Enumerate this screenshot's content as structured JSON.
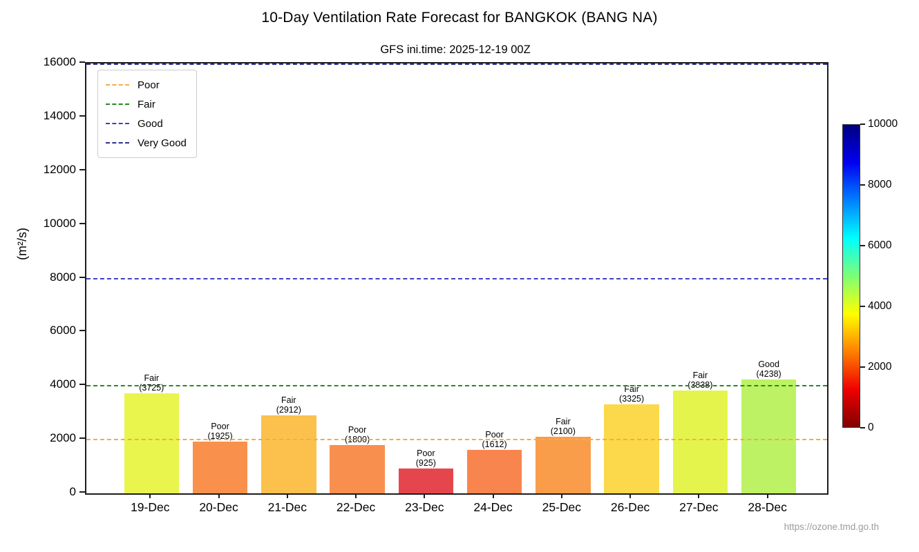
{
  "page": {
    "source_url": "https://ozone.tmd.go.th"
  },
  "chart_data": {
    "type": "bar",
    "title": "10-Day Ventilation Rate Forecast for BANGKOK (BANG NA)",
    "subtitle": "GFS ini.time: 2025-12-19 00Z",
    "xlabel": "",
    "ylabel": "(m²/s)",
    "ylim": [
      0,
      16000
    ],
    "yticks": [
      0,
      2000,
      4000,
      6000,
      8000,
      10000,
      12000,
      14000,
      16000
    ],
    "grid": false,
    "legend_position": "upper left",
    "categories": [
      "19-Dec",
      "20-Dec",
      "21-Dec",
      "22-Dec",
      "23-Dec",
      "24-Dec",
      "25-Dec",
      "26-Dec",
      "27-Dec",
      "28-Dec"
    ],
    "values": [
      3725,
      1925,
      2912,
      1800,
      925,
      1612,
      2100,
      3325,
      3838,
      4238
    ],
    "bar_ratings": [
      "Fair",
      "Poor",
      "Fair",
      "Poor",
      "Poor",
      "Poor",
      "Fair",
      "Fair",
      "Fair",
      "Good"
    ],
    "bar_colors": [
      "#e9f54c",
      "#f9914d",
      "#fbc14c",
      "#f98f4e",
      "#e5464e",
      "#f9854e",
      "#f99d4b",
      "#fcd94a",
      "#e5f44c",
      "#bdf264"
    ],
    "thresholds": [
      {
        "label": "Poor",
        "value": 2000,
        "color": "#f2ad42"
      },
      {
        "label": "Fair",
        "value": 4000,
        "color": "#1e8c1e"
      },
      {
        "label": "Good",
        "value": 8000,
        "color": "#3d3dc6"
      },
      {
        "label": "Very Good",
        "value": 16000,
        "color": "#2e2e8f"
      }
    ],
    "colorbar": {
      "min": 0,
      "max": 10000,
      "ticks": [
        0,
        2000,
        4000,
        6000,
        8000,
        10000
      ],
      "colormap": "jet_r",
      "gradient_stops": [
        "#800000",
        "#f00000",
        "#ff8000",
        "#ffff00",
        "#7dff75",
        "#00ffff",
        "#0080ff",
        "#0000f0",
        "#000080"
      ]
    }
  }
}
